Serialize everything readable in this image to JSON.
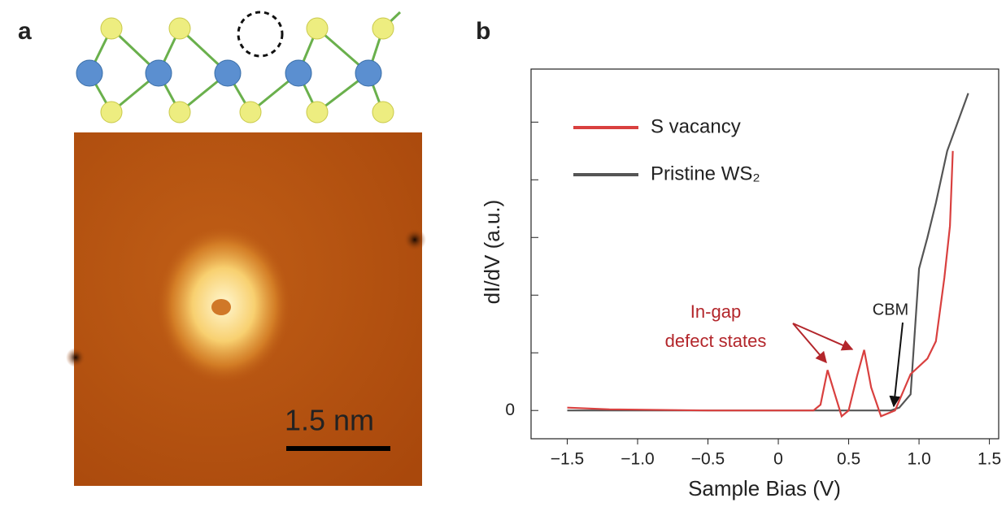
{
  "panels": {
    "a": "a",
    "b": "b"
  },
  "scale_bar": "1.5 nm",
  "chart_data": {
    "type": "line",
    "xlabel": "Sample Bias (V)",
    "ylabel": "dI/dV (a.u.)",
    "xlim": [
      -1.757,
      1.566
    ],
    "ylim": [
      -0.49,
      5.92
    ],
    "xticks": [
      {
        "value": -1.5,
        "label": "−1.5"
      },
      {
        "value": -1.0,
        "label": "−1.0"
      },
      {
        "value": -0.5,
        "label": "−0.5"
      },
      0,
      0.5,
      {
        "value": 1.0,
        "label": "1.0"
      },
      1.5
    ],
    "yticks": [
      0
    ],
    "yminorticks": [
      1,
      2,
      3,
      4,
      5
    ],
    "legend": "upper left",
    "annotations": [
      "In-gap",
      "defect states",
      "CBM"
    ],
    "series": [
      {
        "name": "S vacancy",
        "color": "#d9403f",
        "x": [
          -1.5,
          -1.2,
          -0.5,
          0.0,
          0.25,
          0.3,
          0.35,
          0.4,
          0.45,
          0.5,
          0.56,
          0.61,
          0.66,
          0.73,
          0.83,
          0.94,
          1.06,
          1.12,
          1.18,
          1.22,
          1.24
        ],
        "values": [
          0.05,
          0.02,
          0.0,
          0.0,
          0.0,
          0.1,
          0.7,
          0.3,
          -0.1,
          0.0,
          0.6,
          1.05,
          0.4,
          -0.1,
          0.0,
          0.63,
          0.9,
          1.2,
          2.3,
          3.2,
          4.5
        ]
      },
      {
        "name": "Pristine WS₂",
        "color": "#555555",
        "x": [
          -1.5,
          -0.5,
          0.0,
          0.5,
          0.8,
          0.86,
          0.94,
          1.0,
          1.06,
          1.12,
          1.2,
          1.35
        ],
        "values": [
          0.0,
          0.0,
          0.0,
          0.0,
          0.0,
          0.05,
          0.28,
          2.46,
          3.0,
          3.6,
          4.5,
          5.5
        ]
      }
    ]
  }
}
